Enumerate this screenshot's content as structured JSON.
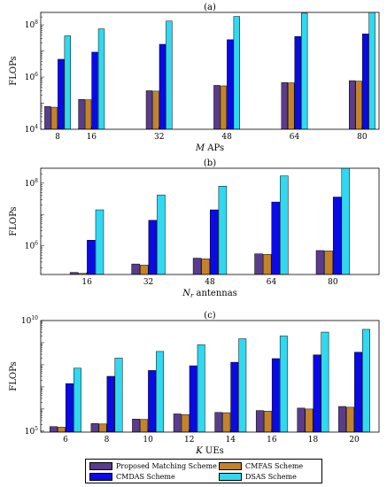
{
  "colors": {
    "proposed": "#5b3c8c",
    "cmfas": "#c4832a",
    "cmdas": "#0a0ae6",
    "dsas": "#30d8f0"
  },
  "legend": [
    {
      "key": "proposed",
      "label": "Proposed Matching Scheme"
    },
    {
      "key": "cmfas",
      "label": "CMFAS Scheme"
    },
    {
      "key": "cmdas",
      "label": "CMDAS Scheme"
    },
    {
      "key": "dsas",
      "label": "DSAS Scheme"
    }
  ],
  "chart_data": [
    {
      "type": "bar",
      "panel_label": "(a)",
      "xlabel": "M APs",
      "ylabel": "FLOPs",
      "yscale": "log",
      "ylim": [
        10000,
        300000000
      ],
      "yticks": [
        {
          "value": 10000,
          "label": "10^4"
        },
        {
          "value": 1000000,
          "label": "10^6"
        },
        {
          "value": 100000000,
          "label": "10^8"
        }
      ],
      "x": [
        8,
        16,
        32,
        48,
        64,
        80
      ],
      "xlim": [
        4,
        84
      ],
      "series": [
        {
          "name": "Proposed Matching Scheme",
          "key": "proposed",
          "values": [
            75000,
            140000,
            300000,
            480000,
            620000,
            730000
          ]
        },
        {
          "name": "CMFAS Scheme",
          "key": "cmfas",
          "values": [
            70000,
            135000,
            290000,
            460000,
            600000,
            700000
          ]
        },
        {
          "name": "CMDAS Scheme",
          "key": "cmdas",
          "values": [
            4800000,
            9000000,
            18000000,
            27000000,
            36000000,
            45000000
          ]
        },
        {
          "name": "DSAS Scheme",
          "key": "dsas",
          "values": [
            38000000,
            70000000,
            140000000,
            210000000,
            280000000,
            350000000
          ]
        }
      ]
    },
    {
      "type": "bar",
      "panel_label": "(b)",
      "xlabel": "Nr antennas",
      "ylabel": "FLOPs",
      "yscale": "log",
      "ylim": [
        120000,
        300000000
      ],
      "yticks": [
        {
          "value": 1000000,
          "label": "10^6"
        },
        {
          "value": 100000000,
          "label": "10^8"
        }
      ],
      "x": [
        16,
        32,
        48,
        64,
        80
      ],
      "xlim": [
        4,
        92
      ],
      "series": [
        {
          "name": "Proposed Matching Scheme",
          "key": "proposed",
          "values": [
            140000,
            260000,
            400000,
            550000,
            700000
          ]
        },
        {
          "name": "CMFAS Scheme",
          "key": "cmfas",
          "values": [
            130000,
            240000,
            380000,
            530000,
            680000
          ]
        },
        {
          "name": "CMDAS Scheme",
          "key": "cmdas",
          "values": [
            1500000,
            6500000,
            14000000,
            25000000,
            36000000
          ]
        },
        {
          "name": "DSAS Scheme",
          "key": "dsas",
          "values": [
            14000000,
            42000000,
            80000000,
            170000000,
            400000000
          ]
        }
      ]
    },
    {
      "type": "bar",
      "panel_label": "(c)",
      "xlabel": "K UEs",
      "ylabel": "FLOPs",
      "yscale": "log",
      "ylim": [
        90000,
        10000000000
      ],
      "yticks": [
        {
          "value": 100000,
          "label": "10^5"
        },
        {
          "value": 10000000000,
          "label": "10^10"
        }
      ],
      "x": [
        6,
        8,
        10,
        12,
        14,
        16,
        18,
        20
      ],
      "xlim": [
        4.8,
        21.2
      ],
      "series": [
        {
          "name": "Proposed Matching Scheme",
          "key": "proposed",
          "values": [
            160000,
            220000,
            350000,
            600000,
            700000,
            850000,
            1100000,
            1300000
          ]
        },
        {
          "name": "CMFAS Scheme",
          "key": "cmfas",
          "values": [
            150000,
            210000,
            340000,
            560000,
            680000,
            800000,
            1000000,
            1200000
          ]
        },
        {
          "name": "CMDAS Scheme",
          "key": "cmdas",
          "values": [
            14000000,
            30000000,
            55000000,
            90000000,
            130000000,
            190000000,
            280000000,
            370000000
          ]
        },
        {
          "name": "DSAS Scheme",
          "key": "dsas",
          "values": [
            70000000,
            200000000,
            400000000,
            800000000,
            1500000000,
            2000000000,
            3000000000,
            4000000000
          ]
        }
      ]
    }
  ]
}
